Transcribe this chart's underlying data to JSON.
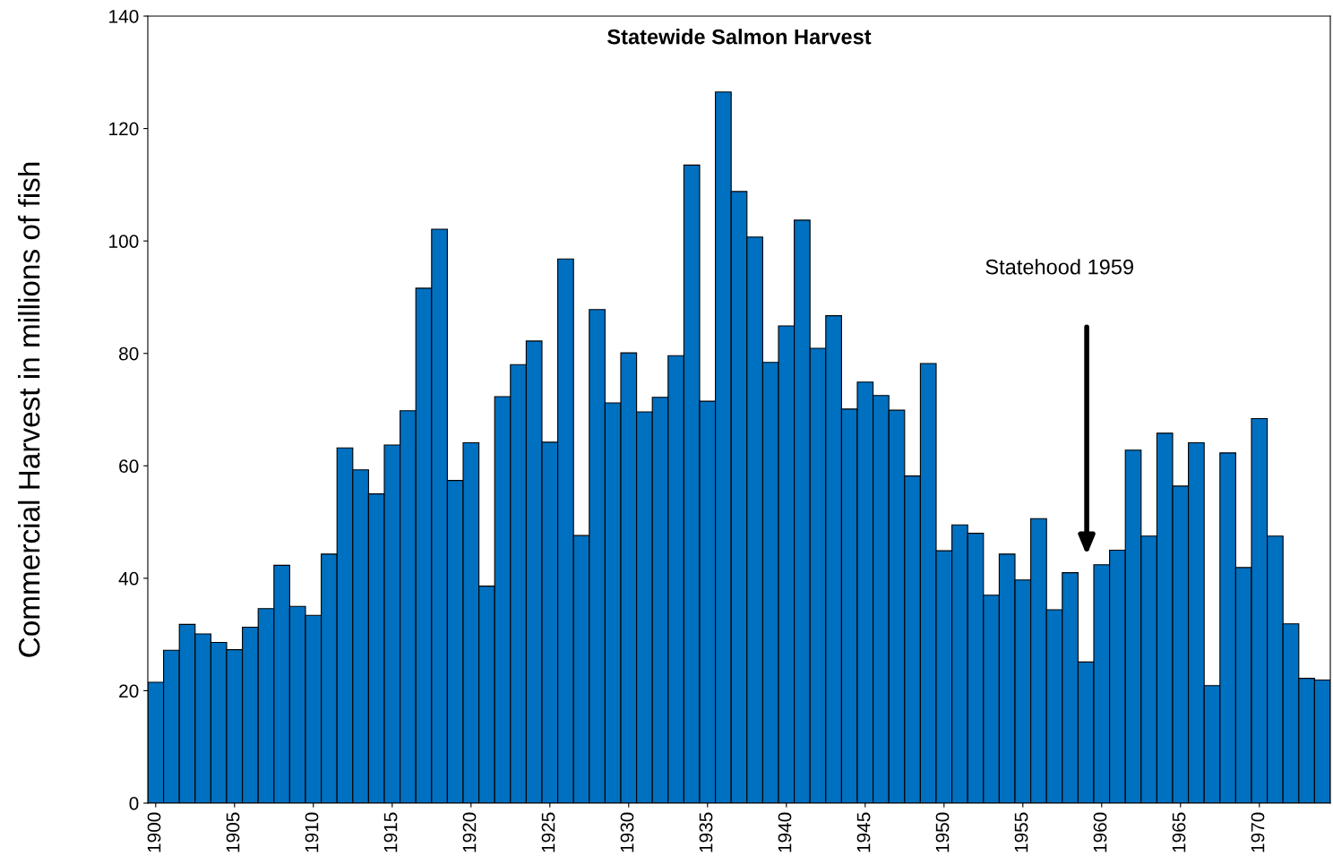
{
  "chart_data": {
    "type": "bar",
    "title": "Statewide Salmon Harvest",
    "ylabel": "Commercial Harvest in millions of fish",
    "x": [
      1900,
      1901,
      1902,
      1903,
      1904,
      1905,
      1906,
      1907,
      1908,
      1909,
      1910,
      1911,
      1912,
      1913,
      1914,
      1915,
      1916,
      1917,
      1918,
      1919,
      1920,
      1921,
      1922,
      1923,
      1924,
      1925,
      1926,
      1927,
      1928,
      1929,
      1930,
      1931,
      1932,
      1933,
      1934,
      1935,
      1936,
      1937,
      1938,
      1939,
      1940,
      1941,
      1942,
      1943,
      1944,
      1945,
      1946,
      1947,
      1948,
      1949,
      1950,
      1951,
      1952,
      1953,
      1954,
      1955,
      1956,
      1957,
      1958,
      1959,
      1960,
      1961,
      1962,
      1963,
      1964,
      1965,
      1966,
      1967,
      1968,
      1969,
      1970,
      1971,
      1972,
      1973,
      1974
    ],
    "values": [
      21.5,
      27.2,
      31.8,
      30.1,
      28.6,
      27.3,
      31.3,
      34.6,
      42.3,
      35.0,
      33.4,
      44.3,
      63.2,
      59.3,
      55.0,
      63.7,
      69.8,
      91.6,
      102.1,
      57.4,
      64.1,
      38.6,
      72.3,
      78.0,
      82.2,
      64.2,
      96.8,
      47.6,
      87.8,
      71.2,
      80.1,
      69.6,
      72.2,
      79.6,
      113.5,
      71.5,
      126.5,
      108.8,
      100.7,
      78.4,
      84.9,
      103.7,
      80.9,
      86.7,
      70.1,
      74.9,
      72.5,
      69.9,
      58.2,
      78.2,
      44.9,
      49.5,
      48.0,
      37.0,
      44.3,
      39.7,
      50.6,
      34.4,
      41.0,
      25.1,
      42.4,
      45.0,
      62.8,
      47.5,
      65.8,
      56.4,
      64.1,
      20.9,
      62.3,
      41.9,
      68.4,
      47.5,
      31.9,
      22.2,
      21.9
    ],
    "color": "#0070c0",
    "xlim": [
      1899.5,
      1974.5
    ],
    "xticks": [
      1900,
      1905,
      1910,
      1915,
      1920,
      1925,
      1930,
      1935,
      1940,
      1945,
      1950,
      1955,
      1960,
      1965,
      1970
    ],
    "ylim": [
      0,
      140
    ],
    "yticks": [
      0,
      20,
      40,
      60,
      80,
      100,
      120,
      140
    ],
    "annotations": [
      "Statehood 1959"
    ],
    "grid": false,
    "legend": false
  }
}
